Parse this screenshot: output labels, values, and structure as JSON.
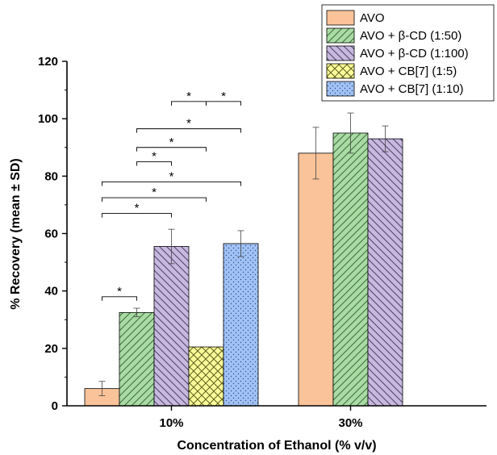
{
  "chart_data": {
    "type": "bar",
    "xlabel": "Concentration of Ethanol (% v/v)",
    "ylabel": "% Recovery (mean ± SD)",
    "ylim": [
      0,
      120
    ],
    "yticks": [
      "0",
      "20",
      "40",
      "60",
      "80",
      "100",
      "120"
    ],
    "categories": [
      "10%",
      "30%"
    ],
    "legend_position": "top-right",
    "series": [
      {
        "name": "AVO",
        "color": "#fbc399",
        "pattern": "solid",
        "values": [
          6,
          88
        ],
        "errors": [
          2.5,
          9
        ]
      },
      {
        "name": "AVO + β-CD (1:50)",
        "color": "#a9dca4",
        "pattern": "diagonal-up",
        "values": [
          32.5,
          95
        ],
        "errors": [
          1.5,
          7
        ]
      },
      {
        "name": "AVO + β-CD (1:100)",
        "color": "#c7b8df",
        "pattern": "diagonal-down",
        "values": [
          55.5,
          93
        ],
        "errors": [
          6,
          4.5
        ]
      },
      {
        "name": "AVO + CB[7] (1:5)",
        "color": "#fcfc99",
        "pattern": "crosshatch",
        "values": [
          20.5,
          null
        ],
        "errors": [
          0,
          null
        ]
      },
      {
        "name": "AVO + CB[7] (1:10)",
        "color": "#a1c2f5",
        "pattern": "dots",
        "values": [
          56.5,
          null
        ],
        "errors": [
          4.5,
          null
        ]
      }
    ],
    "significance": [
      {
        "from": 0,
        "to": 1,
        "y": 38,
        "label": "*"
      },
      {
        "from": 0,
        "to": 2,
        "y": 67,
        "label": "*"
      },
      {
        "from": 0,
        "to": 3,
        "y": 72.5,
        "label": "*"
      },
      {
        "from": 0,
        "to": 4,
        "y": 78,
        "label": "*"
      },
      {
        "from": 1,
        "to": 2,
        "y": 85,
        "label": "*"
      },
      {
        "from": 1,
        "to": 3,
        "y": 90,
        "label": "*"
      },
      {
        "from": 1,
        "to": 4,
        "y": 96.5,
        "label": "*"
      },
      {
        "from": 2,
        "to": 3,
        "y": 106,
        "label": "*"
      },
      {
        "from": 3,
        "to": 4,
        "y": 106,
        "label": "*"
      }
    ]
  }
}
